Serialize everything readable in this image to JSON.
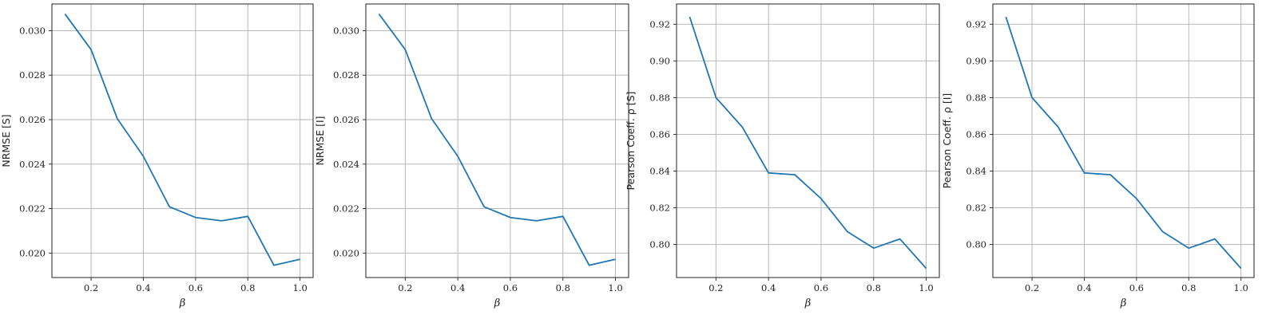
{
  "chart_data": [
    {
      "type": "line",
      "xlabel": "β",
      "ylabel": "NRMSE [S]",
      "grid": true,
      "color": "#1f77b4",
      "x": [
        0.1,
        0.2,
        0.3,
        0.4,
        0.5,
        0.6,
        0.7,
        0.8,
        0.9,
        1.0
      ],
      "y": [
        0.03075,
        0.02915,
        0.02605,
        0.02435,
        0.02208,
        0.0216,
        0.02145,
        0.02165,
        0.01945,
        0.01972
      ],
      "xlim": [
        0.05,
        1.05
      ],
      "ylim": [
        0.0189,
        0.0312
      ],
      "xticks": [
        0.2,
        0.4,
        0.6,
        0.8,
        1.0
      ],
      "xtick_labels": [
        "0.2",
        "0.4",
        "0.6",
        "0.8",
        "1.0"
      ],
      "yticks": [
        0.02,
        0.022,
        0.024,
        0.026,
        0.028,
        0.03
      ],
      "ytick_labels": [
        "0.020",
        "0.022",
        "0.024",
        "0.026",
        "0.028",
        "0.030"
      ]
    },
    {
      "type": "line",
      "xlabel": "β",
      "ylabel": "NRMSE [I]",
      "grid": true,
      "color": "#1f77b4",
      "x": [
        0.1,
        0.2,
        0.3,
        0.4,
        0.5,
        0.6,
        0.7,
        0.8,
        0.9,
        1.0
      ],
      "y": [
        0.03075,
        0.02915,
        0.02605,
        0.02435,
        0.02208,
        0.0216,
        0.02145,
        0.02165,
        0.01945,
        0.01972
      ],
      "xlim": [
        0.05,
        1.05
      ],
      "ylim": [
        0.0189,
        0.0312
      ],
      "xticks": [
        0.2,
        0.4,
        0.6,
        0.8,
        1.0
      ],
      "xtick_labels": [
        "0.2",
        "0.4",
        "0.6",
        "0.8",
        "1.0"
      ],
      "yticks": [
        0.02,
        0.022,
        0.024,
        0.026,
        0.028,
        0.03
      ],
      "ytick_labels": [
        "0.020",
        "0.022",
        "0.024",
        "0.026",
        "0.028",
        "0.030"
      ]
    },
    {
      "type": "line",
      "xlabel": "β",
      "ylabel": "Pearson Coeff.  ρ [S]",
      "grid": true,
      "color": "#1f77b4",
      "x": [
        0.1,
        0.2,
        0.3,
        0.4,
        0.5,
        0.6,
        0.7,
        0.8,
        0.9,
        1.0
      ],
      "y": [
        0.924,
        0.88,
        0.864,
        0.839,
        0.838,
        0.825,
        0.807,
        0.798,
        0.803,
        0.787
      ],
      "xlim": [
        0.05,
        1.05
      ],
      "ylim": [
        0.782,
        0.931
      ],
      "xticks": [
        0.2,
        0.4,
        0.6,
        0.8,
        1.0
      ],
      "xtick_labels": [
        "0.2",
        "0.4",
        "0.6",
        "0.8",
        "1.0"
      ],
      "yticks": [
        0.8,
        0.82,
        0.84,
        0.86,
        0.88,
        0.9,
        0.92
      ],
      "ytick_labels": [
        "0.80",
        "0.82",
        "0.84",
        "0.86",
        "0.88",
        "0.90",
        "0.92"
      ]
    },
    {
      "type": "line",
      "xlabel": "β",
      "ylabel": "Pearson Coeff.  ρ [I]",
      "grid": true,
      "color": "#1f77b4",
      "x": [
        0.1,
        0.2,
        0.3,
        0.4,
        0.5,
        0.6,
        0.7,
        0.8,
        0.9,
        1.0
      ],
      "y": [
        0.924,
        0.88,
        0.864,
        0.839,
        0.838,
        0.825,
        0.807,
        0.798,
        0.803,
        0.787
      ],
      "xlim": [
        0.05,
        1.05
      ],
      "ylim": [
        0.782,
        0.931
      ],
      "xticks": [
        0.2,
        0.4,
        0.6,
        0.8,
        1.0
      ],
      "xtick_labels": [
        "0.2",
        "0.4",
        "0.6",
        "0.8",
        "1.0"
      ],
      "yticks": [
        0.8,
        0.82,
        0.84,
        0.86,
        0.88,
        0.9,
        0.92
      ],
      "ytick_labels": [
        "0.80",
        "0.82",
        "0.84",
        "0.86",
        "0.88",
        "0.90",
        "0.92"
      ]
    }
  ]
}
